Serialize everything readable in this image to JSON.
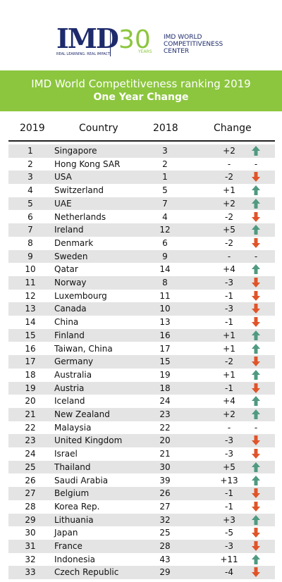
{
  "header": {
    "logo": "IMD",
    "tagline": "REAL LEARNING. REAL IMPACT",
    "anniversary": "30",
    "anniversary_label": "YEARS",
    "center": [
      "IMD WORLD",
      "COMPETITIVENESS",
      "CENTER"
    ]
  },
  "banner": {
    "title": "IMD World Competitiveness ranking 2019",
    "subtitle": "One Year Change"
  },
  "table": {
    "columns": [
      "2019",
      "Country",
      "2018",
      "Change"
    ],
    "rows": [
      [
        1,
        "Singapore",
        3,
        "+2",
        "up"
      ],
      [
        2,
        "Hong Kong SAR",
        2,
        "-",
        "-"
      ],
      [
        3,
        "USA",
        1,
        "-2",
        "down"
      ],
      [
        4,
        "Switzerland",
        5,
        "+1",
        "up"
      ],
      [
        5,
        "UAE",
        7,
        "+2",
        "up"
      ],
      [
        6,
        "Netherlands",
        4,
        "-2",
        "down"
      ],
      [
        7,
        "Ireland",
        12,
        "+5",
        "up"
      ],
      [
        8,
        "Denmark",
        6,
        "-2",
        "down"
      ],
      [
        9,
        "Sweden",
        9,
        "-",
        "-"
      ],
      [
        10,
        "Qatar",
        14,
        "+4",
        "up"
      ],
      [
        11,
        "Norway",
        8,
        "-3",
        "down"
      ],
      [
        12,
        "Luxembourg",
        11,
        "-1",
        "down"
      ],
      [
        13,
        "Canada",
        10,
        "-3",
        "down"
      ],
      [
        14,
        "China",
        13,
        "-1",
        "down"
      ],
      [
        15,
        "Finland",
        16,
        "+1",
        "up"
      ],
      [
        16,
        "Taiwan, China",
        17,
        "+1",
        "up"
      ],
      [
        17,
        "Germany",
        15,
        "-2",
        "down"
      ],
      [
        18,
        "Australia",
        19,
        "+1",
        "up"
      ],
      [
        19,
        "Austria",
        18,
        "-1",
        "down"
      ],
      [
        20,
        "Iceland",
        24,
        "+4",
        "up"
      ],
      [
        21,
        "New Zealand",
        23,
        "+2",
        "up"
      ],
      [
        22,
        "Malaysia",
        22,
        "-",
        "-"
      ],
      [
        23,
        "United Kingdom",
        20,
        "-3",
        "down"
      ],
      [
        24,
        "Israel",
        21,
        "-3",
        "down"
      ],
      [
        25,
        "Thailand",
        30,
        "+5",
        "up"
      ],
      [
        26,
        "Saudi Arabia",
        39,
        "+13",
        "up"
      ],
      [
        27,
        "Belgium",
        26,
        "-1",
        "down"
      ],
      [
        28,
        "Korea Rep.",
        27,
        "-1",
        "down"
      ],
      [
        29,
        "Lithuania",
        32,
        "+3",
        "up"
      ],
      [
        30,
        "Japan",
        25,
        "-5",
        "down"
      ],
      [
        31,
        "France",
        28,
        "-3",
        "down"
      ],
      [
        32,
        "Indonesia",
        43,
        "+11",
        "up"
      ],
      [
        33,
        "Czech Republic",
        29,
        "-4",
        "down"
      ]
    ]
  }
}
